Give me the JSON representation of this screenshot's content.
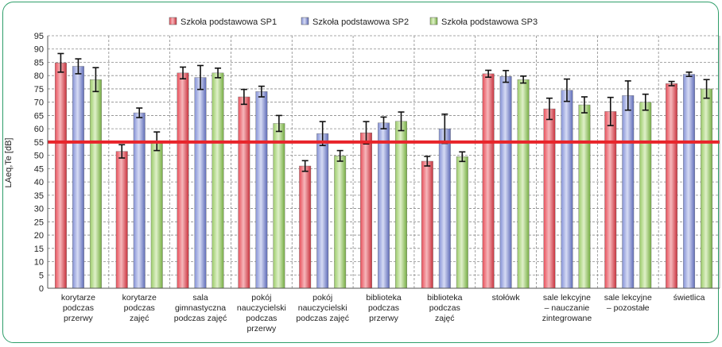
{
  "chart_data": {
    "type": "bar",
    "ylabel": "LAeq,Te [dB]",
    "ylim": [
      0,
      95
    ],
    "ytick_step": 5,
    "grid": true,
    "legend_position": "top",
    "categories": [
      "korytarze podczas przerwy",
      "korytarze podczas zajęć",
      "sala gimnastyczna podczas zajęć",
      "pokój nauczycielski podczas przerwy",
      "pokój nauczycielski podczas zajęć",
      "biblioteka podczas przerwy",
      "biblioteka podczas zajęć",
      "stołówk",
      "sale lekcyjne – nauczanie zintegrowane",
      "sale lekcyjne – pozostałe",
      "świetlica"
    ],
    "category_lines": [
      [
        "korytarze",
        "podczas",
        "przerwy"
      ],
      [
        "korytarze",
        "podczas",
        "zajęć"
      ],
      [
        "sala",
        "gimnastyczna",
        "podczas zajęć"
      ],
      [
        "pokój",
        "nauczycielski",
        "podczas",
        "przerwy"
      ],
      [
        "pokój",
        "nauczycielski",
        "podczas zajęć"
      ],
      [
        "biblioteka",
        "podczas",
        "przerwy"
      ],
      [
        "biblioteka",
        "podczas",
        "zajęć"
      ],
      [
        "stołówk"
      ],
      [
        "sale lekcyjne",
        "– nauczanie",
        "zintegrowane"
      ],
      [
        "sale lekcyjne",
        "– pozostałe"
      ],
      [
        "świetlica"
      ]
    ],
    "series": [
      {
        "name": "Szkoła podstawowa SP1",
        "color": "#e8505b",
        "values": [
          84.8,
          51.5,
          81.0,
          72.0,
          46.0,
          58.5,
          47.8,
          80.7,
          67.5,
          66.5,
          77.0
        ],
        "err": [
          3.5,
          2.5,
          2.2,
          2.8,
          2.0,
          4.2,
          1.8,
          1.3,
          4.0,
          5.3,
          0.8
        ]
      },
      {
        "name": "Szkoła podstawowa SP2",
        "color": "#8592d6",
        "values": [
          83.5,
          66.0,
          79.3,
          74.0,
          58.2,
          62.2,
          60.0,
          79.7,
          74.5,
          72.5,
          80.5
        ],
        "err": [
          2.8,
          1.8,
          4.5,
          2.0,
          4.5,
          2.2,
          5.5,
          2.2,
          4.2,
          5.5,
          0.8
        ]
      },
      {
        "name": "Szkoła podstawowa SP3",
        "color": "#9ccc6a",
        "values": [
          78.5,
          55.3,
          81.0,
          62.0,
          49.8,
          62.8,
          49.5,
          78.5,
          69.0,
          70.0,
          75.0
        ],
        "err": [
          4.5,
          3.5,
          1.8,
          3.0,
          2.0,
          3.5,
          1.8,
          1.3,
          3.0,
          3.0,
          3.5
        ]
      }
    ],
    "reference_line": {
      "value": 55,
      "color": "#e8242a"
    }
  }
}
